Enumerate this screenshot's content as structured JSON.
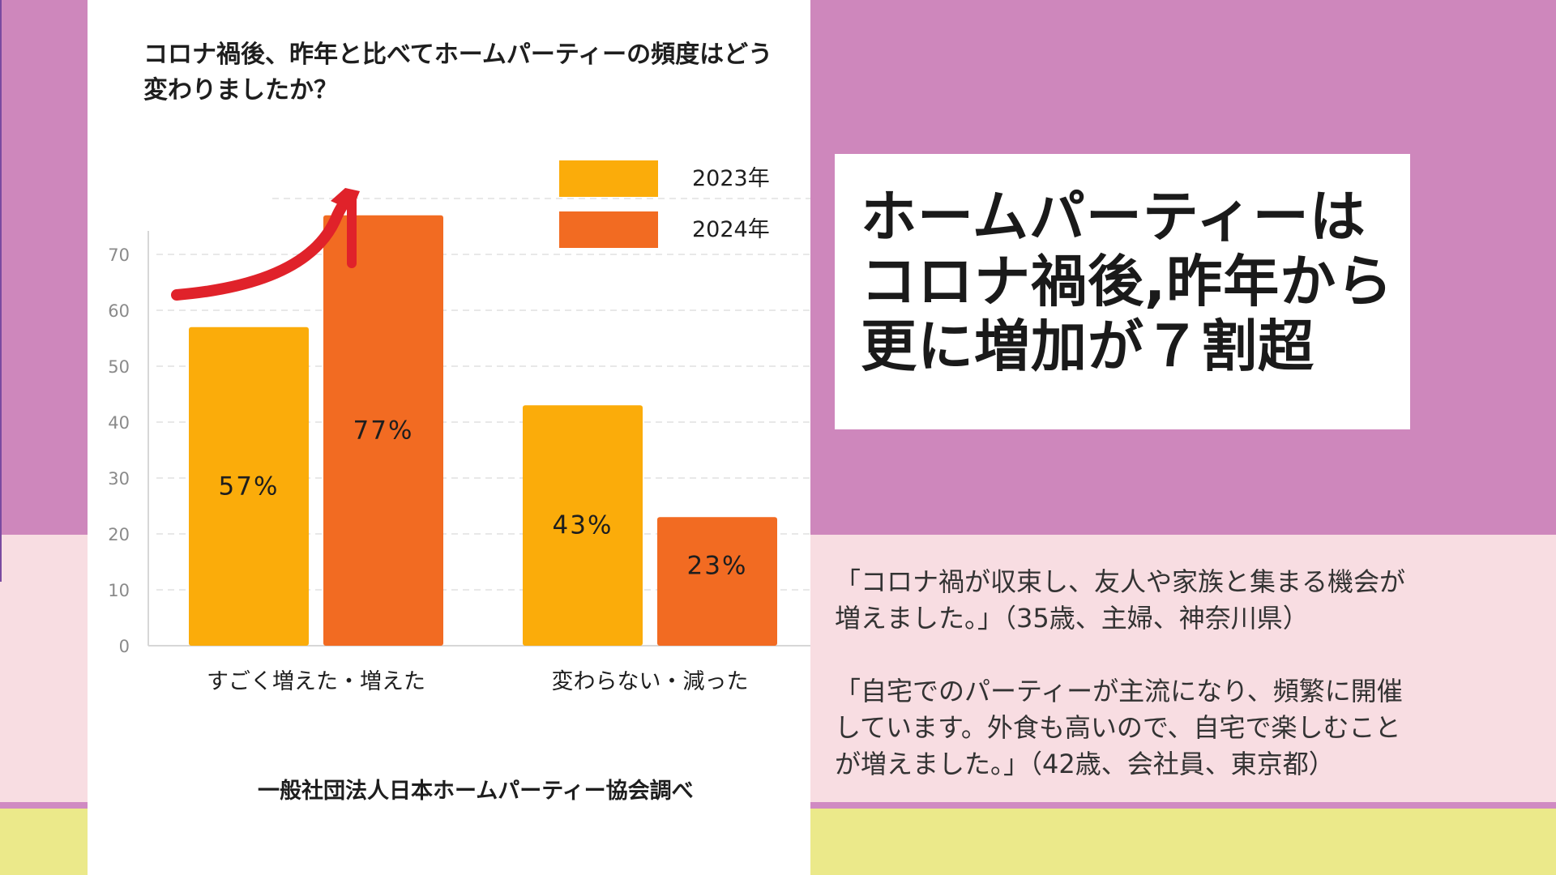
{
  "chart_data": {
    "type": "bar",
    "title": "コロナ禍後、昨年と比べてホームパーティーの頻度はどう変わりましたか？",
    "categories": [
      "すごく増えた・増えた",
      "変わらない・減った"
    ],
    "series": [
      {
        "name": "2023年",
        "values": [
          57,
          43
        ],
        "labels": [
          "57%",
          "43%"
        ],
        "color": "#fbac0a"
      },
      {
        "name": "2024年",
        "values": [
          77,
          23
        ],
        "labels": [
          "77%",
          "23%"
        ],
        "color": "#f26b22"
      }
    ],
    "yticks": [
      0,
      10,
      20,
      30,
      40,
      50,
      60,
      70
    ],
    "ylim": [
      0,
      80
    ],
    "grid": true,
    "legend": "top-right",
    "annotation": "red-arrow-up"
  },
  "source": "一般社団法人日本ホームパーティー協会調べ",
  "headline": {
    "lines": [
      "ホームパーティーは",
      "コロナ禍後,昨年から",
      "更に増加が７割超"
    ]
  },
  "quotes": [
    {
      "lines": [
        "「コロナ禍が収束し、友人や家族と集まる機会が",
        "増えました。」（35歳、主婦、神奈川県）"
      ]
    },
    {
      "lines": [
        "「自宅でのパーティーが主流になり、頻繁に開催",
        "しています。外食も高いので、自宅で楽しむこと",
        "が増えました。」（42歳、会社員、東京都）"
      ]
    }
  ],
  "colors": {
    "purple": "#ce87bc",
    "pink": "#f8dde2",
    "yellow": "#ebe98a",
    "arrow": "#e0222a"
  }
}
